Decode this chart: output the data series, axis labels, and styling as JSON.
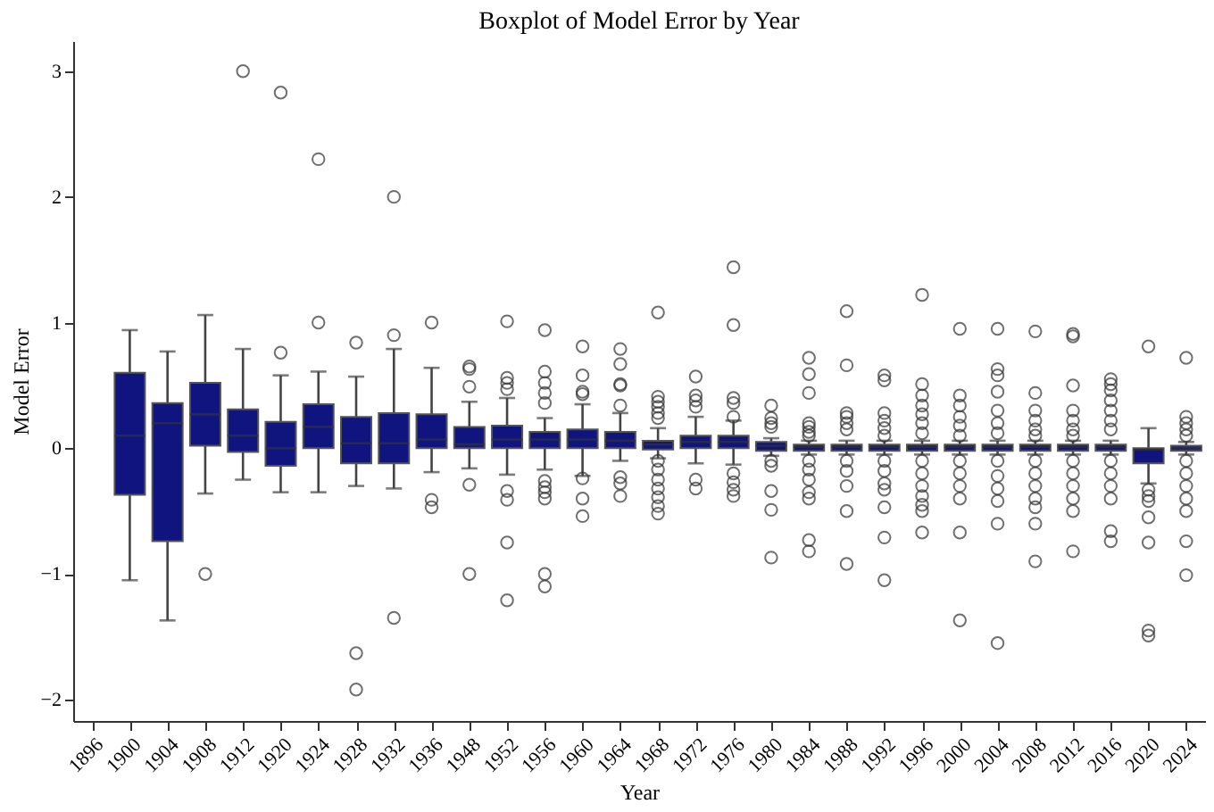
{
  "chart_data": {
    "type": "box",
    "title": "Boxplot of Model Error by Year",
    "xlabel": "Year",
    "ylabel": "Model Error",
    "categories": [
      "1896",
      "1900",
      "1904",
      "1908",
      "1912",
      "1920",
      "1924",
      "1928",
      "1932",
      "1936",
      "1948",
      "1952",
      "1956",
      "1960",
      "1964",
      "1968",
      "1972",
      "1976",
      "1980",
      "1984",
      "1988",
      "1992",
      "1996",
      "2000",
      "2004",
      "2008",
      "2012",
      "2016",
      "2020",
      "2024"
    ],
    "color": "#10147e",
    "ylim": [
      -2.17,
      3.24
    ],
    "yticks": [
      -2,
      -1,
      0,
      1,
      2,
      3
    ],
    "grid": false,
    "marker": "circle",
    "boxes": [
      null,
      {
        "low": -1.05,
        "q1": -0.37,
        "median": 0.1,
        "q3": 0.6,
        "high": 0.94
      },
      {
        "low": -1.37,
        "q1": -0.74,
        "median": 0.2,
        "q3": 0.36,
        "high": 0.77
      },
      {
        "low": -0.36,
        "q1": 0.02,
        "median": 0.27,
        "q3": 0.52,
        "high": 1.06,
        "outliers": [
          -1.0
        ]
      },
      {
        "low": -0.25,
        "q1": -0.03,
        "median": 0.1,
        "q3": 0.31,
        "high": 0.79,
        "outliers": [
          3.0
        ]
      },
      {
        "low": -0.35,
        "q1": -0.14,
        "median": 0.0,
        "q3": 0.21,
        "high": 0.58,
        "outliers": [
          2.83,
          0.76
        ]
      },
      {
        "low": -0.35,
        "q1": 0.0,
        "median": 0.17,
        "q3": 0.35,
        "high": 0.61,
        "outliers": [
          2.3,
          1.0
        ]
      },
      {
        "low": -0.3,
        "q1": -0.12,
        "median": 0.04,
        "q3": 0.25,
        "high": 0.57,
        "outliers": [
          0.84,
          -1.63,
          -1.92
        ]
      },
      {
        "low": -0.32,
        "q1": -0.12,
        "median": 0.04,
        "q3": 0.28,
        "high": 0.79,
        "outliers": [
          2.0,
          0.9,
          -1.35
        ]
      },
      {
        "low": -0.19,
        "q1": 0.0,
        "median": 0.07,
        "q3": 0.27,
        "high": 0.64,
        "outliers": [
          1.0,
          -0.41,
          -0.47
        ]
      },
      {
        "low": -0.16,
        "q1": 0.0,
        "median": 0.03,
        "q3": 0.17,
        "high": 0.37,
        "outliers": [
          0.65,
          0.63,
          0.49,
          -0.29,
          -1.0
        ]
      },
      {
        "low": -0.21,
        "q1": 0.0,
        "median": 0.07,
        "q3": 0.18,
        "high": 0.4,
        "outliers": [
          1.01,
          0.56,
          0.52,
          0.47,
          -0.34,
          -0.41,
          -0.75,
          -1.21
        ]
      },
      {
        "low": -0.17,
        "q1": 0.0,
        "median": 0.07,
        "q3": 0.13,
        "high": 0.24,
        "outliers": [
          0.94,
          0.61,
          0.52,
          0.44,
          0.36,
          -0.26,
          -0.31,
          -0.35,
          -0.4,
          -1.0,
          -1.1
        ]
      },
      {
        "low": -0.22,
        "q1": 0.0,
        "median": 0.07,
        "q3": 0.15,
        "high": 0.35,
        "outliers": [
          0.81,
          0.58,
          0.45,
          0.43,
          -0.24,
          -0.4,
          -0.54
        ]
      },
      {
        "low": -0.1,
        "q1": 0.0,
        "median": 0.06,
        "q3": 0.13,
        "high": 0.28,
        "outliers": [
          0.79,
          0.67,
          0.51,
          0.5,
          0.34,
          -0.23,
          -0.28,
          -0.38
        ]
      },
      {
        "low": -0.08,
        "q1": -0.01,
        "median": 0.03,
        "q3": 0.06,
        "high": 0.16,
        "outliers": [
          1.08,
          0.41,
          0.37,
          0.33,
          0.28,
          0.24,
          -0.1,
          -0.17,
          -0.25,
          -0.32,
          -0.39,
          -0.46,
          -0.52
        ]
      },
      {
        "low": -0.12,
        "q1": 0.0,
        "median": 0.05,
        "q3": 0.1,
        "high": 0.25,
        "outliers": [
          0.57,
          0.42,
          0.38,
          0.33,
          -0.25,
          -0.32
        ]
      },
      {
        "low": -0.13,
        "q1": 0.0,
        "median": 0.05,
        "q3": 0.1,
        "high": 0.22,
        "outliers": [
          1.44,
          0.98,
          0.4,
          0.36,
          0.25,
          -0.2,
          -0.27,
          -0.33,
          -0.38
        ]
      },
      {
        "low": -0.06,
        "q1": -0.02,
        "median": 0.02,
        "q3": 0.05,
        "high": 0.08,
        "outliers": [
          0.34,
          0.24,
          0.2,
          0.17,
          -0.1,
          -0.14,
          -0.34,
          -0.49,
          -0.87
        ]
      },
      {
        "low": -0.05,
        "q1": -0.02,
        "median": 0.01,
        "q3": 0.03,
        "high": 0.06,
        "outliers": [
          0.72,
          0.59,
          0.44,
          0.2,
          0.17,
          0.13,
          0.1,
          -0.1,
          -0.17,
          -0.25,
          -0.35,
          -0.4,
          -0.73,
          -0.82
        ]
      },
      {
        "low": -0.05,
        "q1": -0.02,
        "median": 0.01,
        "q3": 0.03,
        "high": 0.06,
        "outliers": [
          1.09,
          0.66,
          0.28,
          0.25,
          0.2,
          0.15,
          -0.1,
          -0.18,
          -0.3,
          -0.5,
          -0.92
        ]
      },
      {
        "low": -0.05,
        "q1": -0.02,
        "median": 0.01,
        "q3": 0.03,
        "high": 0.06,
        "outliers": [
          0.58,
          0.54,
          0.28,
          0.22,
          0.16,
          0.1,
          -0.1,
          -0.18,
          -0.28,
          -0.33,
          -0.47,
          -0.71,
          -1.05
        ]
      },
      {
        "low": -0.05,
        "q1": -0.02,
        "median": 0.01,
        "q3": 0.03,
        "high": 0.06,
        "outliers": [
          1.22,
          0.51,
          0.42,
          0.34,
          0.27,
          0.2,
          0.12,
          -0.1,
          -0.2,
          -0.3,
          -0.38,
          -0.45,
          -0.5,
          -0.67
        ]
      },
      {
        "low": -0.05,
        "q1": -0.02,
        "median": 0.01,
        "q3": 0.03,
        "high": 0.06,
        "outliers": [
          0.95,
          0.42,
          0.34,
          0.25,
          0.18,
          0.1,
          -0.1,
          -0.2,
          -0.3,
          -0.4,
          -0.67,
          -1.37
        ]
      },
      {
        "low": -0.05,
        "q1": -0.02,
        "median": 0.01,
        "q3": 0.03,
        "high": 0.06,
        "outliers": [
          0.95,
          0.63,
          0.58,
          0.45,
          0.3,
          0.2,
          0.12,
          -0.1,
          -0.22,
          -0.32,
          -0.42,
          -0.6,
          -1.55
        ]
      },
      {
        "low": -0.05,
        "q1": -0.02,
        "median": 0.01,
        "q3": 0.03,
        "high": 0.06,
        "outliers": [
          0.93,
          0.44,
          0.3,
          0.22,
          0.15,
          0.1,
          -0.1,
          -0.2,
          -0.3,
          -0.4,
          -0.47,
          -0.6,
          -0.9
        ]
      },
      {
        "low": -0.05,
        "q1": -0.02,
        "median": 0.01,
        "q3": 0.03,
        "high": 0.06,
        "outliers": [
          0.91,
          0.89,
          0.5,
          0.3,
          0.22,
          0.15,
          0.1,
          -0.1,
          -0.2,
          -0.3,
          -0.4,
          -0.5,
          -0.82
        ]
      },
      {
        "low": -0.05,
        "q1": -0.02,
        "median": 0.01,
        "q3": 0.03,
        "high": 0.06,
        "outliers": [
          0.55,
          0.51,
          0.46,
          0.38,
          0.3,
          0.22,
          0.15,
          -0.1,
          -0.2,
          -0.3,
          -0.4,
          -0.66,
          -0.74
        ]
      },
      {
        "low": -0.28,
        "q1": -0.12,
        "median": -0.01,
        "q3": 0.0,
        "high": 0.16,
        "outliers": [
          0.81,
          -0.33,
          -0.38,
          -0.42,
          -0.55,
          -0.75,
          -1.45,
          -1.49
        ]
      },
      {
        "low": -0.05,
        "q1": -0.02,
        "median": 0.0,
        "q3": 0.02,
        "high": 0.05,
        "outliers": [
          0.72,
          0.25,
          0.2,
          0.15,
          0.1,
          -0.1,
          -0.2,
          -0.3,
          -0.4,
          -0.5,
          -0.74,
          -1.01
        ]
      }
    ]
  }
}
